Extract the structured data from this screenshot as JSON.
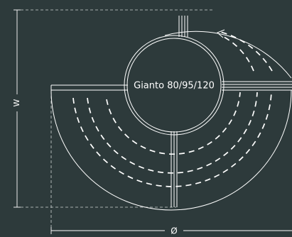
{
  "diagram": {
    "model_label": "Gianto 80/95/120",
    "width_symbol": "W",
    "diameter_symbol": "Ø",
    "colors": {
      "background": "#2d3a3b",
      "line": "#ffffff"
    }
  }
}
